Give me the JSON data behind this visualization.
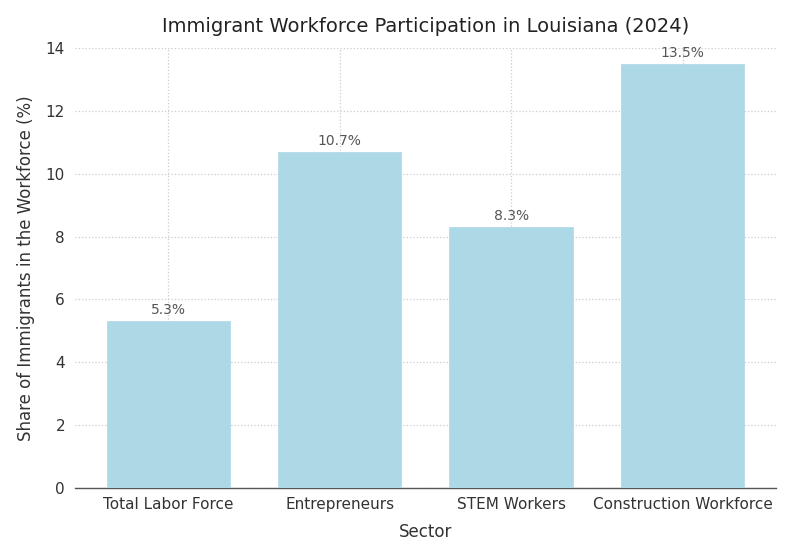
{
  "title": "Immigrant Workforce Participation in Louisiana (2024)",
  "xlabel": "Sector",
  "ylabel": "Share of Immigrants in the Workforce (%)",
  "categories": [
    "Total Labor Force",
    "Entrepreneurs",
    "STEM Workers",
    "Construction Workforce"
  ],
  "values": [
    5.3,
    10.7,
    8.3,
    13.5
  ],
  "labels": [
    "5.3%",
    "10.7%",
    "8.3%",
    "13.5%"
  ],
  "bar_color": "#add8e6",
  "bar_edgecolor": "#add8e6",
  "ylim": [
    0,
    14
  ],
  "yticks": [
    0,
    2,
    4,
    6,
    8,
    10,
    12,
    14
  ],
  "background_color": "#ffffff",
  "grid_color": "#cccccc",
  "title_fontsize": 14,
  "label_fontsize": 12,
  "tick_fontsize": 11,
  "annotation_fontsize": 10,
  "bar_width": 0.72
}
